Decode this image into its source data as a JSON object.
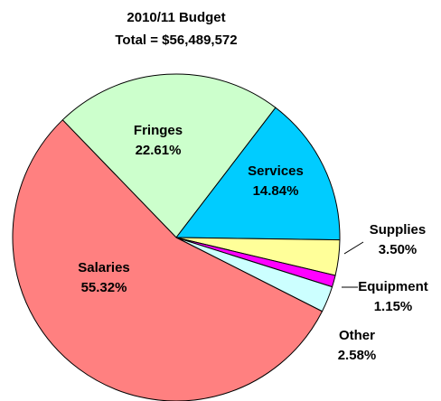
{
  "chart_data": {
    "type": "pie",
    "title": [
      "2010/11 Budget",
      "Total = $56,489,572"
    ],
    "categories": [
      "Fringes",
      "Services",
      "Supplies",
      "Equipment",
      "Other",
      "Salaries"
    ],
    "values": [
      22.61,
      14.84,
      3.5,
      1.15,
      2.58,
      55.32
    ],
    "value_labels": [
      "22.61%",
      "14.84%",
      "3.50%",
      "1.15%",
      "2.58%",
      "55.32%"
    ],
    "colors": [
      "#ccffcc",
      "#00ccff",
      "#ffff99",
      "#ff00ff",
      "#ccffff",
      "#ff8080"
    ]
  }
}
